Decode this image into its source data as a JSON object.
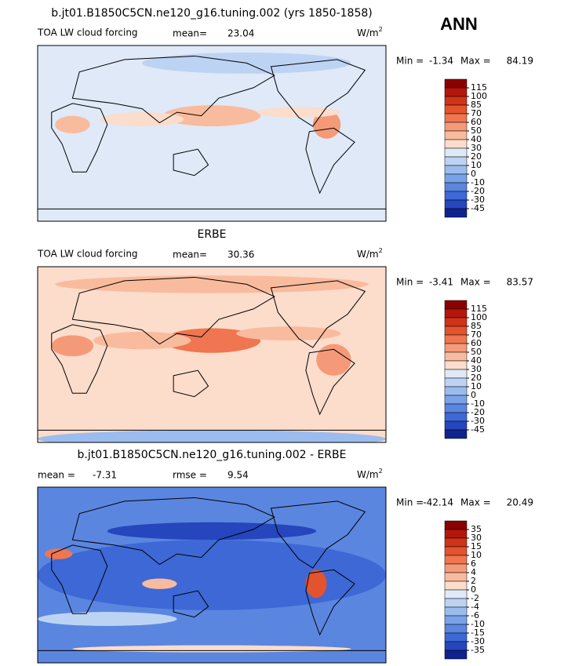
{
  "season": "ANN",
  "colormap": [
    "#8b0000",
    "#b3170b",
    "#cf3318",
    "#e3532d",
    "#ef7650",
    "#f59a78",
    "#f9bb9d",
    "#fcdccb",
    "#dfe9f7",
    "#bcd3f3",
    "#9bbcee",
    "#7aa2e8",
    "#5a86e0",
    "#3d68d6",
    "#2546bd",
    "#0f238f"
  ],
  "panels": [
    {
      "title": "b.jt01.B1850C5CN.ne120_g16.tuning.002 (yrs 1850-1858)",
      "field_label": "TOA LW cloud forcing",
      "stats": [
        {
          "label": "mean=",
          "value": 23.04
        }
      ],
      "units": "W/m",
      "units_sup": "2",
      "min_label": "Min =",
      "min": -1.34,
      "max_label": "Max =",
      "max": 84.19,
      "levels": [
        115,
        100,
        85,
        70,
        60,
        50,
        40,
        30,
        20,
        10,
        0,
        -10,
        -20,
        -30,
        -45
      ]
    },
    {
      "title": "ERBE",
      "field_label": "TOA LW cloud forcing",
      "stats": [
        {
          "label": "mean=",
          "value": 30.36
        }
      ],
      "units": "W/m",
      "units_sup": "2",
      "min_label": "Min =",
      "min": -3.41,
      "max_label": "Max =",
      "max": 83.57,
      "levels": [
        115,
        100,
        85,
        70,
        60,
        50,
        40,
        30,
        20,
        10,
        0,
        -10,
        -20,
        -30,
        -45
      ]
    },
    {
      "title": "b.jt01.B1850C5CN.ne120_g16.tuning.002 - ERBE",
      "stats": [
        {
          "label": "mean =",
          "value": -7.31
        },
        {
          "label": "rmse =",
          "value": 9.54
        }
      ],
      "units": "W/m",
      "units_sup": "2",
      "min_label": "Min =",
      "min": -42.14,
      "max_label": "Max =",
      "max": 20.49,
      "levels": [
        35,
        30,
        15,
        10,
        6,
        4,
        2,
        0,
        -2,
        -4,
        -6,
        -10,
        -15,
        -30,
        -35
      ]
    }
  ]
}
